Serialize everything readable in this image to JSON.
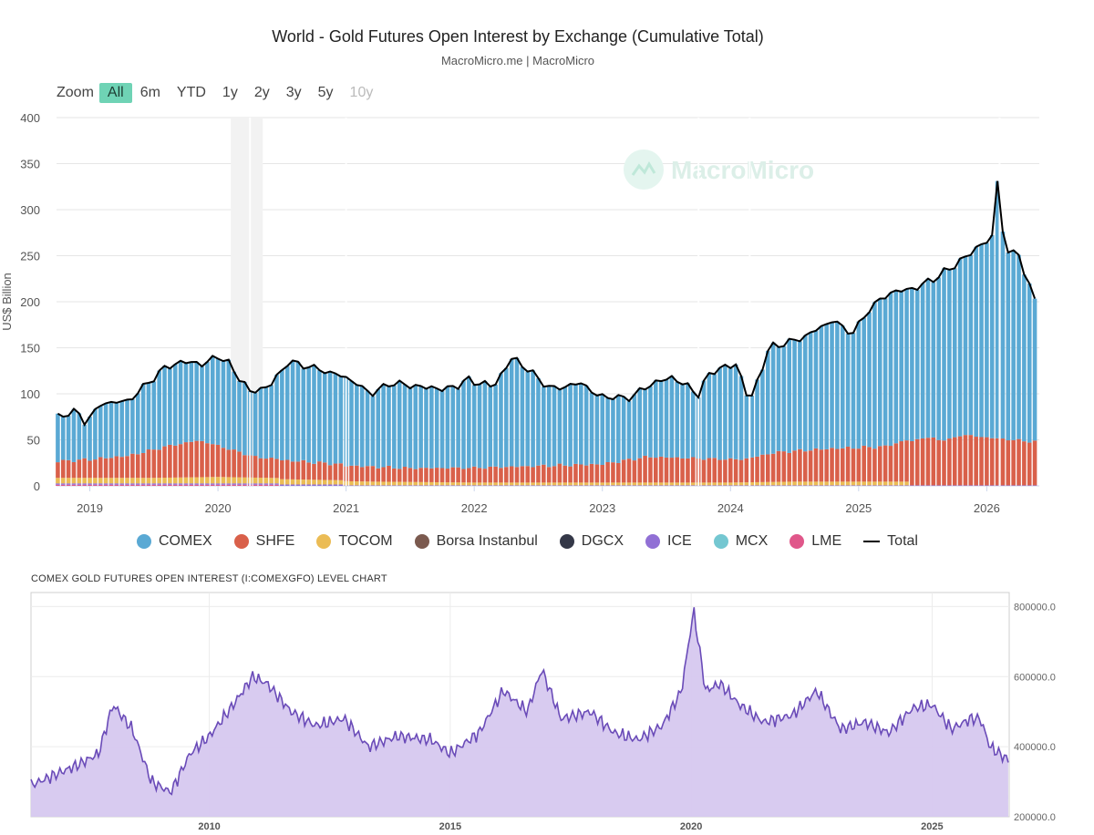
{
  "header": {
    "title": "World - Gold Futures Open Interest by Exchange (Cumulative Total)",
    "source": "MacroMicro.me | MacroMicro"
  },
  "zoom": {
    "label": "Zoom",
    "buttons": [
      {
        "label": "All",
        "state": "active"
      },
      {
        "label": "6m",
        "state": "normal"
      },
      {
        "label": "YTD",
        "state": "normal"
      },
      {
        "label": "1y",
        "state": "normal"
      },
      {
        "label": "2y",
        "state": "normal"
      },
      {
        "label": "3y",
        "state": "normal"
      },
      {
        "label": "5y",
        "state": "normal"
      },
      {
        "label": "10y",
        "state": "disabled"
      }
    ]
  },
  "watermark": "MacroMicro",
  "legend": [
    {
      "name": "COMEX",
      "color": "#5aa9d4",
      "kind": "dot"
    },
    {
      "name": "SHFE",
      "color": "#d9604a",
      "kind": "dot"
    },
    {
      "name": "TOCOM",
      "color": "#ebbc55",
      "kind": "dot"
    },
    {
      "name": "Borsa Instanbul",
      "color": "#7b5a4f",
      "kind": "dot"
    },
    {
      "name": "DGCX",
      "color": "#343848",
      "kind": "dot"
    },
    {
      "name": "ICE",
      "color": "#9170d5",
      "kind": "dot"
    },
    {
      "name": "MCX",
      "color": "#74c7d1",
      "kind": "dot"
    },
    {
      "name": "LME",
      "color": "#e0578a",
      "kind": "dot"
    },
    {
      "name": "Total",
      "color": "#000000",
      "kind": "line"
    }
  ],
  "subchart_title": "COMEX GOLD FUTURES OPEN INTEREST (I:COMEXGFO) LEVEL CHART",
  "chart_data": [
    {
      "type": "bar",
      "stacked": true,
      "title": "World - Gold Futures Open Interest by Exchange (Cumulative Total)",
      "ylabel": "US$ Billion",
      "ylim": [
        0,
        400
      ],
      "yticks": [
        0,
        50,
        100,
        150,
        200,
        250,
        300,
        350,
        400
      ],
      "xlim": [
        2018.74,
        2026.41
      ],
      "xticks": [
        2019,
        2020,
        2021,
        2022,
        2023,
        2024,
        2025,
        2026
      ],
      "shaded_range": [
        2020.1,
        2020.35
      ],
      "grid": true,
      "legend_position": "bottom",
      "total_keypoints": {
        "x": [
          2018.75,
          2018.9,
          2018.95,
          2019.1,
          2019.3,
          2019.4,
          2019.6,
          2019.75,
          2019.9,
          2020.0,
          2020.1,
          2020.25,
          2020.4,
          2020.55,
          2020.75,
          2021.0,
          2021.2,
          2021.35,
          2021.55,
          2021.8,
          2021.95,
          2022.15,
          2022.3,
          2022.6,
          2022.85,
          2022.95,
          2023.2,
          2023.4,
          2023.55,
          2023.75,
          2023.85,
          2024.05,
          2024.15,
          2024.3,
          2024.55,
          2024.8,
          2024.95,
          2025.1,
          2025.25,
          2025.45,
          2025.65,
          2025.85,
          2025.95,
          2026.05,
          2026.08,
          2026.15,
          2026.25,
          2026.3,
          2026.4
        ],
        "values": [
          75,
          82,
          68,
          90,
          92,
          105,
          130,
          135,
          132,
          142,
          130,
          102,
          108,
          135,
          128,
          118,
          100,
          112,
          108,
          105,
          115,
          108,
          140,
          105,
          112,
          98,
          95,
          112,
          118,
          100,
          125,
          132,
          90,
          150,
          160,
          180,
          165,
          195,
          210,
          215,
          230,
          250,
          262,
          270,
          335,
          250,
          255,
          225,
          198
        ]
      },
      "shfe_keypoints": {
        "x": [
          2018.75,
          2019.0,
          2019.3,
          2019.6,
          2019.85,
          2020.1,
          2020.3,
          2020.6,
          2021.0,
          2021.5,
          2022.0,
          2022.5,
          2023.0,
          2023.35,
          2023.8,
          2024.1,
          2024.35,
          2024.8,
          2025.2,
          2025.35,
          2025.5,
          2025.7,
          2025.8,
          2026.0,
          2026.15,
          2026.4
        ],
        "values": [
          18,
          20,
          24,
          34,
          40,
          30,
          22,
          20,
          17,
          15,
          16,
          18,
          20,
          28,
          26,
          25,
          32,
          36,
          38,
          44,
          52,
          49,
          55,
          52,
          50,
          47
        ]
      },
      "tocom_keypoints": {
        "x": [
          2018.75,
          2019.5,
          2020.0,
          2020.4,
          2020.8,
          2021.2,
          2022.0,
          2023.0,
          2024.0,
          2024.5,
          2025.0,
          2025.38
        ],
        "values": [
          6,
          6,
          7,
          6,
          5,
          4,
          3,
          3,
          3,
          4,
          4,
          4
        ]
      },
      "series_order": [
        "COMEX",
        "SHFE",
        "TOCOM",
        "Borsa Instanbul",
        "DGCX",
        "ICE",
        "MCX",
        "LME"
      ]
    },
    {
      "type": "area",
      "title": "COMEX GOLD FUTURES OPEN INTEREST (I:COMEXGFO) LEVEL CHART",
      "ylim": [
        200000,
        840000
      ],
      "yticks": [
        200000,
        400000,
        600000,
        800000
      ],
      "ytick_labels": [
        "200000.0",
        "400000.0",
        "600000.0",
        "800000.0"
      ],
      "xlim": [
        2006.3,
        2026.6
      ],
      "xticks": [
        2010,
        2015,
        2020,
        2025
      ],
      "color": "#6a4bb8",
      "fill": "#d6c8ef",
      "keypoints": {
        "x": [
          2006.3,
          2006.8,
          2007.3,
          2007.7,
          2008.0,
          2008.4,
          2008.8,
          2009.2,
          2009.6,
          2010.0,
          2010.5,
          2010.9,
          2011.2,
          2011.7,
          2012.2,
          2012.8,
          2013.3,
          2013.9,
          2014.6,
          2015.0,
          2015.6,
          2016.1,
          2016.6,
          2016.9,
          2017.3,
          2017.9,
          2018.4,
          2018.9,
          2019.4,
          2019.8,
          2020.05,
          2020.3,
          2020.6,
          2021.0,
          2021.5,
          2022.1,
          2022.6,
          2023.1,
          2023.6,
          2024.1,
          2024.6,
          2025.0,
          2025.4,
          2025.8,
          2026.0,
          2026.2,
          2026.6
        ],
        "values": [
          290000,
          320000,
          350000,
          380000,
          520000,
          450000,
          300000,
          270000,
          380000,
          430000,
          520000,
          600000,
          580000,
          500000,
          460000,
          480000,
          400000,
          430000,
          420000,
          380000,
          440000,
          560000,
          500000,
          620000,
          480000,
          500000,
          440000,
          420000,
          460000,
          560000,
          790000,
          560000,
          580000,
          520000,
          470000,
          490000,
          560000,
          450000,
          470000,
          440000,
          510000,
          520000,
          450000,
          480000,
          480000,
          400000,
          360000
        ]
      }
    }
  ]
}
